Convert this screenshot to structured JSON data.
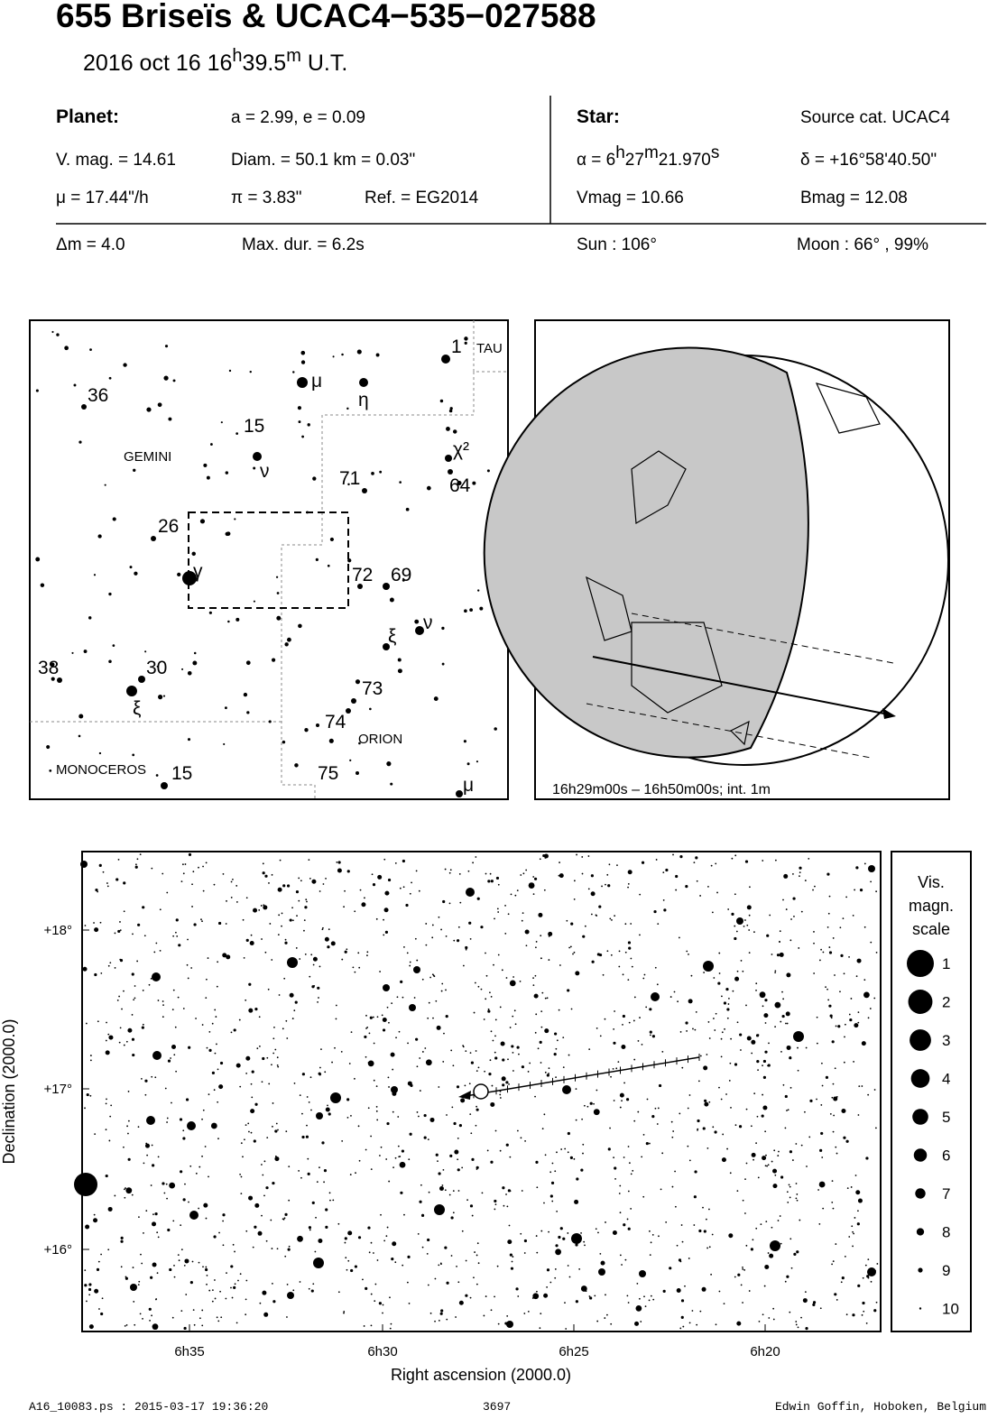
{
  "header": {
    "title": "655 Briseïs  &  UCAC4−535−027588",
    "date": [
      "2016 oct 16  16",
      "h",
      "39.5",
      "m",
      " U.T."
    ]
  },
  "planet": {
    "heading": "Planet:",
    "ae": "a = 2.99, e = 0.09",
    "vmag": "V. mag. = 14.61",
    "diam": "Diam. = 50.1 km = 0.03\"",
    "mu": "μ =  17.44\"/h",
    "pi": "π =  3.83\"",
    "ref": "Ref. = EG2014"
  },
  "star": {
    "heading": "Star:",
    "source": "Source cat.  UCAC4",
    "alpha": [
      "α =  6",
      "h",
      "27",
      "m",
      "21.970",
      "s"
    ],
    "delta": "δ = +16°58'40.50\"",
    "vmag": "Vmag = 10.66",
    "bmag": "Bmag = 12.08"
  },
  "event": {
    "dm": "Δm = 4.0",
    "maxdur": "Max. dur. = 6.2s",
    "sun": "Sun : 106°",
    "moon": "Moon :  66° , 99%"
  },
  "finder": {
    "labels": [
      "1",
      "TAU",
      "μ",
      "η",
      "36",
      "15",
      "GEMINI",
      "ν",
      "χ²",
      "71",
      "64",
      "26",
      "γ",
      "72",
      "69",
      "ν",
      "ξ",
      "38",
      "30",
      "73",
      "ξ",
      "74",
      "ORION",
      "MONOCEROS",
      "15",
      "75",
      "μ"
    ]
  },
  "globe": {
    "caption": "16h29m00s – 16h50m00s; int.  1m"
  },
  "starfield": {
    "xlabel": "Right ascension (2000.0)",
    "ylabel": "Declination (2000.0)",
    "xticks": [
      "6h35",
      "6h30",
      "6h25",
      "6h20"
    ],
    "yticks": [
      "+18°",
      "+17°",
      "+16°"
    ]
  },
  "legend": {
    "title": [
      "Vis.",
      "magn.",
      "scale"
    ],
    "mags": [
      "1",
      "2",
      "3",
      "4",
      "5",
      "6",
      "7",
      "8",
      "9",
      "10"
    ]
  },
  "footer": {
    "left": "A16_10083.ps : 2015-03-17 19:36:20",
    "center": "3697",
    "right": "Edwin Goffin, Hoboken, Belgium"
  }
}
